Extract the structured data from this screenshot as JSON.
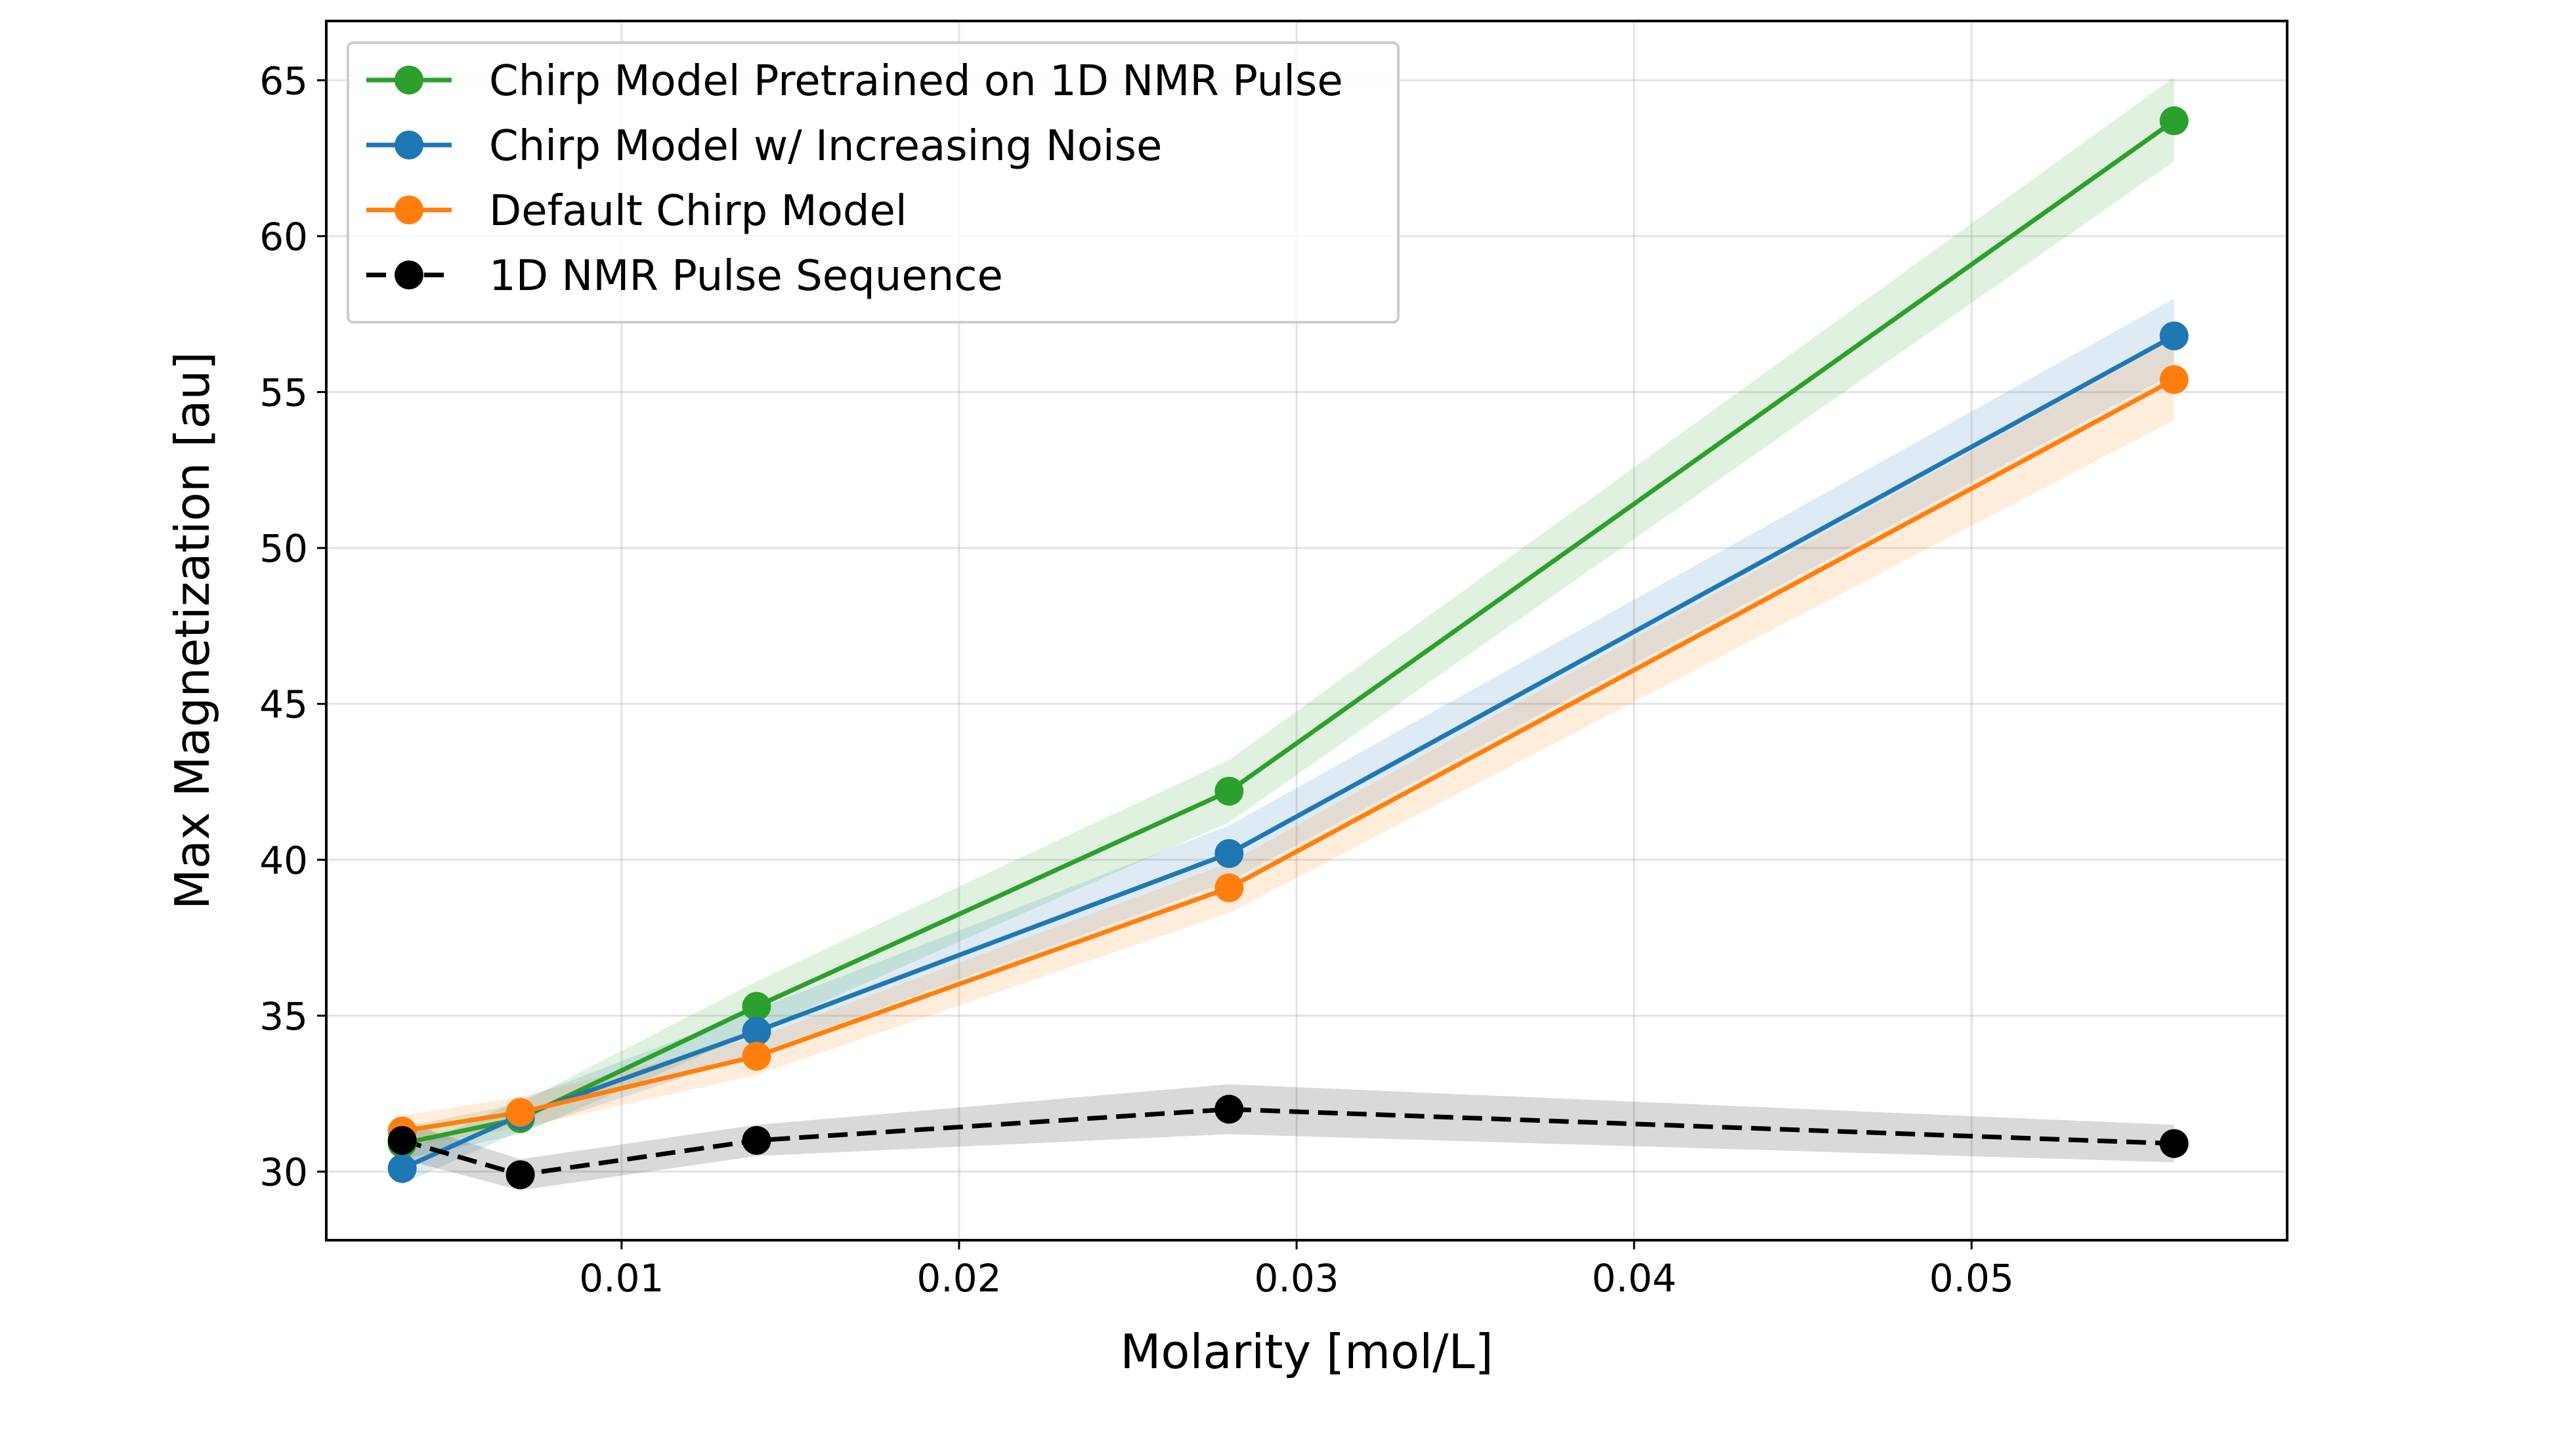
{
  "chart_data": {
    "type": "line",
    "title": "",
    "xlabel": "Molarity [mol/L]",
    "ylabel": "Max Magnetization [au]",
    "xlim": [
      0.00125,
      0.05935
    ],
    "ylim": [
      27.8,
      66.9
    ],
    "xticks": [
      0.01,
      0.02,
      0.03,
      0.04,
      0.05
    ],
    "xtick_labels": [
      "0.01",
      "0.02",
      "0.03",
      "0.04",
      "0.05"
    ],
    "yticks": [
      30,
      35,
      40,
      45,
      50,
      55,
      60,
      65
    ],
    "ytick_labels": [
      "30",
      "35",
      "40",
      "45",
      "50",
      "55",
      "60",
      "65"
    ],
    "grid": true,
    "legend_position": "top-left",
    "x": [
      0.0035,
      0.007,
      0.014,
      0.028,
      0.056
    ],
    "series": [
      {
        "name": "Chirp Model Pretrained on 1D NMR Pulse",
        "color": "#2ca02c",
        "dashed": false,
        "values": [
          30.9,
          31.7,
          35.3,
          42.2,
          63.7
        ],
        "band_lower": [
          30.4,
          31.2,
          34.5,
          41.2,
          62.4
        ],
        "band_upper": [
          31.4,
          32.2,
          36.1,
          43.2,
          65.1
        ]
      },
      {
        "name": "Chirp Model w/ Increasing Noise",
        "color": "#1f77b4",
        "dashed": false,
        "values": [
          30.1,
          31.8,
          34.5,
          40.2,
          56.8
        ],
        "band_lower": [
          29.6,
          31.3,
          33.8,
          39.3,
          55.6
        ],
        "band_upper": [
          30.6,
          32.3,
          35.2,
          41.1,
          58.0
        ]
      },
      {
        "name": "Default Chirp Model",
        "color": "#ff7f0e",
        "dashed": false,
        "values": [
          31.3,
          31.9,
          33.7,
          39.1,
          55.4
        ],
        "band_lower": [
          30.8,
          31.4,
          33.1,
          38.3,
          54.1
        ],
        "band_upper": [
          31.8,
          32.4,
          34.3,
          39.9,
          56.7
        ]
      },
      {
        "name": "1D NMR Pulse Sequence",
        "color": "#000000",
        "dashed": true,
        "values": [
          31.0,
          29.9,
          31.0,
          32.0,
          30.9
        ],
        "band_lower": [
          30.4,
          29.4,
          30.5,
          31.2,
          30.3
        ],
        "band_upper": [
          31.6,
          30.4,
          31.5,
          32.8,
          31.5
        ]
      }
    ]
  }
}
